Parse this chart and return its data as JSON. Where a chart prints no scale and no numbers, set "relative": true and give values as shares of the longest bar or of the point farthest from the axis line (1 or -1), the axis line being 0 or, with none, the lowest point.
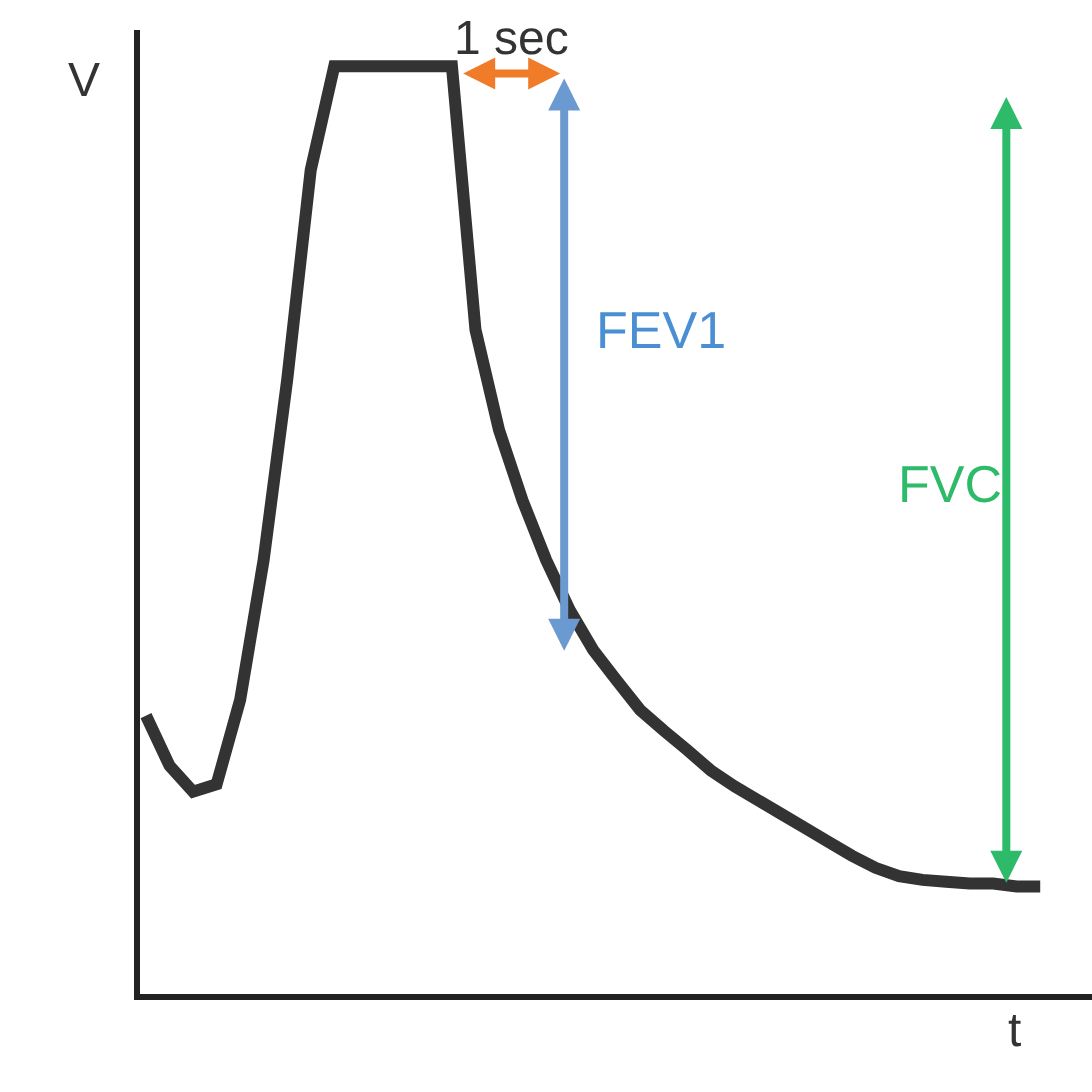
{
  "chart_data": {
    "type": "line",
    "relative": true,
    "xlabel": "t",
    "ylabel": "V",
    "marker": "none",
    "line_style": "solid",
    "categories": [
      null,
      null,
      null,
      null,
      null,
      null,
      null,
      null,
      null,
      null,
      null,
      null,
      null,
      null,
      null,
      null,
      null,
      null,
      null,
      null,
      null,
      null,
      null,
      null,
      null,
      null,
      null,
      null,
      null,
      null,
      null,
      null,
      null,
      null,
      null,
      null,
      null,
      null,
      null
    ],
    "series": [
      {
        "color": "#333333",
        "values": [
          0.3,
          0.246,
          0.218,
          0.226,
          0.317,
          0.468,
          0.662,
          0.888,
          1.0,
          1.0,
          1.0,
          1.0,
          1.0,
          1.0,
          0.716,
          0.608,
          0.532,
          0.468,
          0.414,
          0.371,
          0.338,
          0.306,
          0.284,
          0.263,
          0.241,
          0.224,
          0.209,
          0.194,
          0.179,
          0.164,
          0.149,
          0.136,
          0.127,
          0.123,
          0.121,
          0.119,
          0.119,
          0.116,
          0.116
        ]
      }
    ],
    "annotations": [
      "1 sec",
      "FEV1",
      "FVC"
    ]
  }
}
